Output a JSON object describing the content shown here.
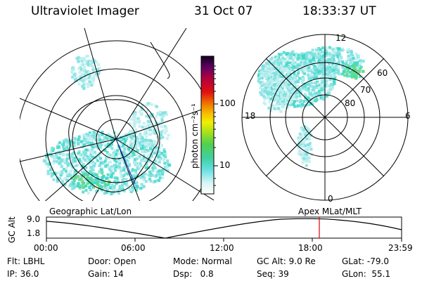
{
  "header": {
    "instrument": "Ultraviolet Imager",
    "date": "31 Oct 07",
    "time": "18:33:37 UT"
  },
  "colorbar": {
    "label": "photon cm⁻²s⁻¹",
    "ticks": [
      "100",
      "10"
    ]
  },
  "polar_plot": {
    "mlt_labels": [
      "12",
      "18",
      "6",
      "0"
    ],
    "lat_labels": [
      "60",
      "70",
      "80"
    ]
  },
  "timeline": {
    "left_label": "Geographic Lat/Lon",
    "right_label": "Apex MLat/MLT",
    "y_axis_label": "GC Alt",
    "y_ticks": [
      "9.0",
      "1.8"
    ],
    "x_ticks": [
      "00:00",
      "06:00",
      "12:00",
      "18:00",
      "23:59"
    ],
    "marker_color": "#e00000"
  },
  "info": {
    "row1": [
      {
        "key": "Flt:",
        "value": "LBHL"
      },
      {
        "key": "Door:",
        "value": "Open"
      },
      {
        "key": "Mode:",
        "value": "Normal"
      },
      {
        "key": "GC Alt:",
        "value": "9.0 Re"
      },
      {
        "key": "GLat:",
        "value": "-79.0"
      }
    ],
    "row2": [
      {
        "key": "IP:",
        "value": "36.0"
      },
      {
        "key": "Gain:",
        "value": "14"
      },
      {
        "key": "Dsp:",
        "value": "0.8"
      },
      {
        "key": "Seq:",
        "value": "39"
      },
      {
        "key": "GLon:",
        "value": "55.1"
      }
    ]
  },
  "colors": {
    "aurora_light": "#bfeff0",
    "aurora_mid": "#7fe0e0",
    "aurora_strong": "#40d8c8",
    "aurora_green": "#60d880"
  }
}
